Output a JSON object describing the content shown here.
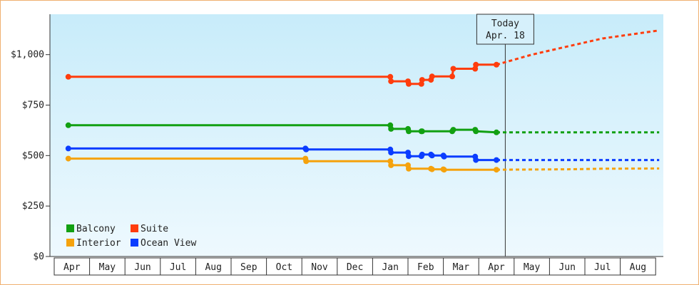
{
  "chart_data": {
    "type": "line",
    "step": true,
    "background_gradient": [
      "#c8ecfa",
      "#eef9fe"
    ],
    "ylim": [
      0,
      1200
    ],
    "y_ticks": [
      {
        "value": 0,
        "label": "$0"
      },
      {
        "value": 250,
        "label": "$250"
      },
      {
        "value": 500,
        "label": "$500"
      },
      {
        "value": 750,
        "label": "$750"
      },
      {
        "value": 1000,
        "label": "$1,000"
      }
    ],
    "months": [
      "Apr",
      "May",
      "Jun",
      "Jul",
      "Aug",
      "Sep",
      "Oct",
      "Nov",
      "Dec",
      "Jan",
      "Feb",
      "Mar",
      "Apr",
      "May",
      "Jun",
      "Jul",
      "Aug"
    ],
    "today": {
      "line1": "Today",
      "line2": "Apr. 18",
      "month_pos": 12.25
    },
    "legend": [
      "Balcony",
      "Suite",
      "Interior",
      "Ocean View"
    ],
    "series": [
      {
        "name": "Suite",
        "color": "#ff3d0d",
        "points": [
          [
            -0.1,
            890
          ],
          [
            9.0,
            890
          ],
          [
            9.02,
            868
          ],
          [
            9.5,
            868
          ],
          [
            9.52,
            855
          ],
          [
            9.88,
            855
          ],
          [
            9.9,
            875
          ],
          [
            10.15,
            875
          ],
          [
            10.18,
            892
          ],
          [
            10.75,
            892
          ],
          [
            10.78,
            930
          ],
          [
            11.4,
            930
          ],
          [
            11.42,
            950
          ],
          [
            12.0,
            950
          ]
        ],
        "projection": [
          [
            12.0,
            950
          ],
          [
            13.0,
            1000
          ],
          [
            14.0,
            1040
          ],
          [
            15.0,
            1080
          ],
          [
            16.6,
            1120
          ]
        ]
      },
      {
        "name": "Balcony",
        "color": "#12a012",
        "points": [
          [
            -0.1,
            650
          ],
          [
            9.0,
            650
          ],
          [
            9.02,
            632
          ],
          [
            9.5,
            632
          ],
          [
            9.52,
            620
          ],
          [
            9.88,
            620
          ],
          [
            9.9,
            620
          ],
          [
            10.75,
            620
          ],
          [
            10.78,
            628
          ],
          [
            11.4,
            628
          ],
          [
            11.42,
            620
          ],
          [
            12.0,
            615
          ]
        ],
        "projection": [
          [
            12.0,
            615
          ],
          [
            16.6,
            615
          ]
        ]
      },
      {
        "name": "Ocean View",
        "color": "#0b3dff",
        "points": [
          [
            -0.1,
            535
          ],
          [
            6.6,
            535
          ],
          [
            6.62,
            530
          ],
          [
            9.0,
            530
          ],
          [
            9.02,
            515
          ],
          [
            9.5,
            515
          ],
          [
            9.52,
            497
          ],
          [
            9.88,
            497
          ],
          [
            9.9,
            505
          ],
          [
            10.15,
            505
          ],
          [
            10.18,
            500
          ],
          [
            10.5,
            500
          ],
          [
            10.52,
            495
          ],
          [
            11.4,
            495
          ],
          [
            11.42,
            478
          ],
          [
            12.0,
            478
          ]
        ],
        "projection": [
          [
            12.0,
            478
          ],
          [
            16.6,
            478
          ]
        ]
      },
      {
        "name": "Interior",
        "color": "#f5a20c",
        "points": [
          [
            -0.1,
            485
          ],
          [
            6.6,
            485
          ],
          [
            6.62,
            472
          ],
          [
            9.0,
            472
          ],
          [
            9.02,
            452
          ],
          [
            9.5,
            452
          ],
          [
            9.52,
            435
          ],
          [
            10.15,
            435
          ],
          [
            10.18,
            432
          ],
          [
            10.5,
            432
          ],
          [
            10.52,
            430
          ],
          [
            12.0,
            430
          ]
        ],
        "projection": [
          [
            12.0,
            430
          ],
          [
            14.0,
            432
          ],
          [
            15.0,
            435
          ],
          [
            16.6,
            436
          ]
        ]
      }
    ]
  }
}
